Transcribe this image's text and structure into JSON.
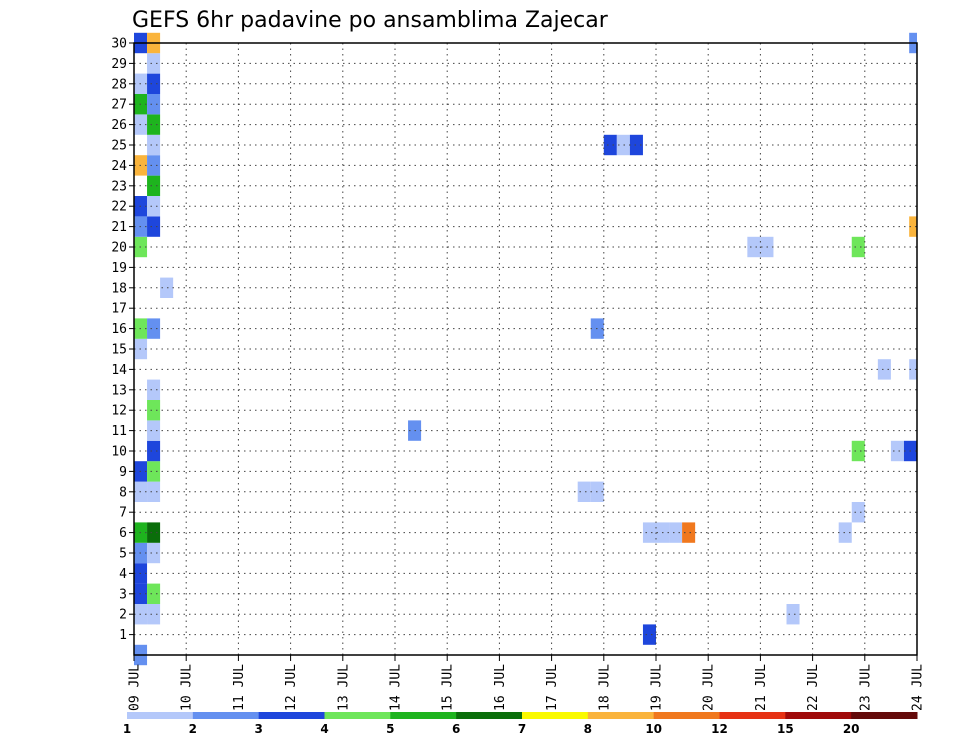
{
  "chart_data": {
    "type": "heatmap",
    "title": "GEFS 6hr padavine po ansamblima Zajecar",
    "xlabel": "",
    "ylabel": "",
    "x_tick_labels": [
      "09 JUL",
      "10 JUL",
      "11 JUL",
      "12 JUL",
      "13 JUL",
      "14 JUL",
      "15 JUL",
      "16 JUL",
      "17 JUL",
      "18 JUL",
      "19 JUL",
      "20 JUL",
      "21 JUL",
      "22 JUL",
      "23 JUL",
      "24 JUL"
    ],
    "y_tick_labels": [
      "1",
      "2",
      "3",
      "4",
      "5",
      "6",
      "7",
      "8",
      "9",
      "10",
      "11",
      "12",
      "13",
      "14",
      "15",
      "16",
      "17",
      "18",
      "19",
      "20",
      "21",
      "22",
      "23",
      "24",
      "25",
      "26",
      "27",
      "28",
      "29",
      "30"
    ],
    "xlim_days": [
      0,
      15
    ],
    "ylim_members": [
      0,
      30
    ],
    "grid": true,
    "colorbar": {
      "labels": [
        "1",
        "2",
        "3",
        "4",
        "5",
        "6",
        "7",
        "8",
        "10",
        "12",
        "15",
        "20"
      ],
      "colors": [
        "#b4c8fa",
        "#6490f0",
        "#1e46dc",
        "#6ee65a",
        "#1eb41e",
        "#0a6e0a",
        "#fafa00",
        "#fab43c",
        "#f0781e",
        "#e63214",
        "#a00a0a",
        "#640a0a"
      ]
    },
    "cells": [
      {
        "day": 0.0,
        "member": 0,
        "color": "#6490f0"
      },
      {
        "day": 0.0,
        "member": 2,
        "color": "#b4c8fa"
      },
      {
        "day": 0.25,
        "member": 2,
        "color": "#b4c8fa"
      },
      {
        "day": 0.0,
        "member": 3,
        "color": "#1e46dc"
      },
      {
        "day": 0.25,
        "member": 3,
        "color": "#6ee65a"
      },
      {
        "day": 0.0,
        "member": 4,
        "color": "#1e46dc"
      },
      {
        "day": 0.0,
        "member": 5,
        "color": "#6490f0"
      },
      {
        "day": 0.25,
        "member": 5,
        "color": "#b4c8fa"
      },
      {
        "day": 0.0,
        "member": 6,
        "color": "#1eb41e"
      },
      {
        "day": 0.25,
        "member": 6,
        "color": "#0a6e0a"
      },
      {
        "day": 0.0,
        "member": 8,
        "color": "#b4c8fa"
      },
      {
        "day": 0.25,
        "member": 8,
        "color": "#b4c8fa"
      },
      {
        "day": 0.0,
        "member": 9,
        "color": "#1e46dc"
      },
      {
        "day": 0.25,
        "member": 9,
        "color": "#6ee65a"
      },
      {
        "day": 0.25,
        "member": 10,
        "color": "#1e46dc"
      },
      {
        "day": 0.25,
        "member": 11,
        "color": "#b4c8fa"
      },
      {
        "day": 0.25,
        "member": 12,
        "color": "#6ee65a"
      },
      {
        "day": 0.25,
        "member": 13,
        "color": "#b4c8fa"
      },
      {
        "day": 0.0,
        "member": 15,
        "color": "#b4c8fa"
      },
      {
        "day": 0.0,
        "member": 16,
        "color": "#6ee65a"
      },
      {
        "day": 0.25,
        "member": 16,
        "color": "#6490f0"
      },
      {
        "day": 0.5,
        "member": 18,
        "color": "#b4c8fa"
      },
      {
        "day": 0.0,
        "member": 20,
        "color": "#6ee65a"
      },
      {
        "day": 0.0,
        "member": 21,
        "color": "#6490f0"
      },
      {
        "day": 0.25,
        "member": 21,
        "color": "#1e46dc"
      },
      {
        "day": 0.0,
        "member": 22,
        "color": "#1e46dc"
      },
      {
        "day": 0.25,
        "member": 22,
        "color": "#b4c8fa"
      },
      {
        "day": 0.25,
        "member": 23,
        "color": "#1eb41e"
      },
      {
        "day": 0.0,
        "member": 24,
        "color": "#fab43c"
      },
      {
        "day": 0.25,
        "member": 24,
        "color": "#6490f0"
      },
      {
        "day": 0.25,
        "member": 25,
        "color": "#b4c8fa"
      },
      {
        "day": 0.0,
        "member": 26,
        "color": "#b4c8fa"
      },
      {
        "day": 0.25,
        "member": 26,
        "color": "#1eb41e"
      },
      {
        "day": 0.0,
        "member": 27,
        "color": "#1eb41e"
      },
      {
        "day": 0.25,
        "member": 27,
        "color": "#6490f0"
      },
      {
        "day": 0.0,
        "member": 28,
        "color": "#b4c8fa"
      },
      {
        "day": 0.25,
        "member": 28,
        "color": "#1e46dc"
      },
      {
        "day": 0.25,
        "member": 29,
        "color": "#b4c8fa"
      },
      {
        "day": 0.0,
        "member": 30,
        "color": "#1e46dc"
      },
      {
        "day": 0.25,
        "member": 30,
        "color": "#fab43c"
      },
      {
        "day": 5.25,
        "member": 11,
        "color": "#6490f0"
      },
      {
        "day": 8.5,
        "member": 8,
        "color": "#b4c8fa"
      },
      {
        "day": 8.75,
        "member": 8,
        "color": "#b4c8fa"
      },
      {
        "day": 8.75,
        "member": 16,
        "color": "#6490f0"
      },
      {
        "day": 9.0,
        "member": 25,
        "color": "#1e46dc"
      },
      {
        "day": 9.25,
        "member": 25,
        "color": "#b4c8fa"
      },
      {
        "day": 9.5,
        "member": 25,
        "color": "#1e46dc"
      },
      {
        "day": 9.75,
        "member": 1,
        "color": "#1e46dc"
      },
      {
        "day": 9.75,
        "member": 6,
        "color": "#b4c8fa"
      },
      {
        "day": 10.0,
        "member": 6,
        "color": "#b4c8fa"
      },
      {
        "day": 10.25,
        "member": 6,
        "color": "#b4c8fa"
      },
      {
        "day": 10.5,
        "member": 6,
        "color": "#f0781e"
      },
      {
        "day": 11.75,
        "member": 20,
        "color": "#b4c8fa"
      },
      {
        "day": 12.0,
        "member": 20,
        "color": "#b4c8fa"
      },
      {
        "day": 12.5,
        "member": 2,
        "color": "#b4c8fa"
      },
      {
        "day": 13.5,
        "member": 6,
        "color": "#b4c8fa"
      },
      {
        "day": 13.75,
        "member": 7,
        "color": "#b4c8fa"
      },
      {
        "day": 13.75,
        "member": 10,
        "color": "#6ee65a"
      },
      {
        "day": 13.75,
        "member": 20,
        "color": "#6ee65a"
      },
      {
        "day": 14.25,
        "member": 14,
        "color": "#b4c8fa"
      },
      {
        "day": 14.5,
        "member": 10,
        "color": "#b4c8fa"
      },
      {
        "day": 14.75,
        "member": 10,
        "color": "#1e46dc"
      },
      {
        "day": 14.85,
        "member": 14,
        "color": "#b4c8fa"
      },
      {
        "day": 14.85,
        "member": 21,
        "color": "#fab43c"
      },
      {
        "day": 14.85,
        "member": 30,
        "color": "#6490f0"
      }
    ]
  }
}
